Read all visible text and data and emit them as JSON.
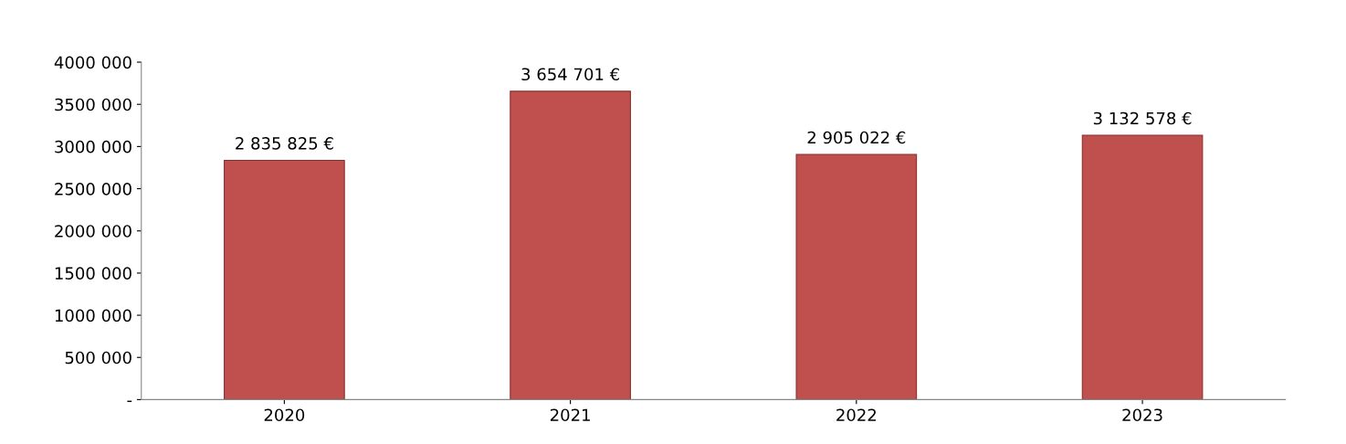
{
  "chart_data": {
    "type": "bar",
    "categories": [
      "2020",
      "2021",
      "2022",
      "2023"
    ],
    "values": [
      2835825,
      3654701,
      2905022,
      3132578
    ],
    "value_labels": [
      "2 835 825 €",
      "3 654 701 €",
      "2 905 022 €",
      "3 132 578 €"
    ],
    "color": "#c0504d",
    "ylim": [
      0,
      4000000
    ],
    "yticks": [
      {
        "value": 0,
        "label": "-"
      },
      {
        "value": 500000,
        "label": "500 000"
      },
      {
        "value": 1000000,
        "label": "1000 000"
      },
      {
        "value": 1500000,
        "label": "1500 000"
      },
      {
        "value": 2000000,
        "label": "2000 000"
      },
      {
        "value": 2500000,
        "label": "2500 000"
      },
      {
        "value": 3000000,
        "label": "3000 000"
      },
      {
        "value": 3500000,
        "label": "3500 000"
      },
      {
        "value": 4000000,
        "label": "4000 000"
      }
    ],
    "grid": false,
    "legend": false
  }
}
